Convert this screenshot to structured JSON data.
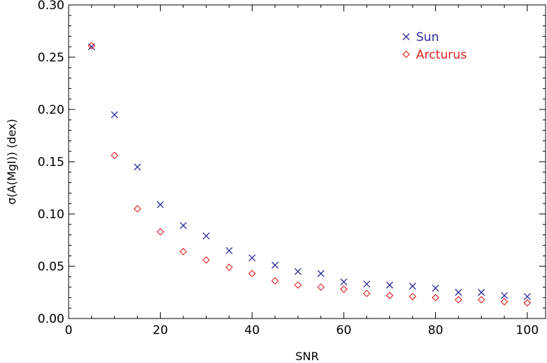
{
  "chart_data": {
    "type": "scatter",
    "xlabel": "SNR",
    "ylabel": "σ(A(MgI)) (dex)",
    "xlim": [
      0,
      104
    ],
    "ylim": [
      0.0,
      0.3
    ],
    "xticks": [
      0,
      20,
      40,
      60,
      80,
      100
    ],
    "yticks": [
      0.0,
      0.05,
      0.1,
      0.15,
      0.2,
      0.25,
      0.3
    ],
    "ytick_labels": [
      "0.00",
      "0.05",
      "0.10",
      "0.15",
      "0.20",
      "0.25",
      "0.30"
    ],
    "legend_position": "top-right",
    "x": [
      5,
      10,
      15,
      20,
      25,
      30,
      35,
      40,
      45,
      50,
      55,
      60,
      65,
      70,
      75,
      80,
      85,
      90,
      95,
      100
    ],
    "series": [
      {
        "name": "Sun",
        "marker": "x",
        "color": "#2a2a9a",
        "values": [
          0.26,
          0.195,
          0.145,
          0.109,
          0.089,
          0.079,
          0.065,
          0.058,
          0.051,
          0.045,
          0.043,
          0.035,
          0.033,
          0.032,
          0.031,
          0.029,
          0.025,
          0.025,
          0.022,
          0.021
        ]
      },
      {
        "name": "Arcturus",
        "marker": "diamond",
        "color": "#e02020",
        "values": [
          0.261,
          0.156,
          0.105,
          0.083,
          0.064,
          0.056,
          0.049,
          0.043,
          0.036,
          0.032,
          0.03,
          0.028,
          0.024,
          0.022,
          0.021,
          0.02,
          0.018,
          0.018,
          0.016,
          0.015
        ]
      }
    ]
  }
}
